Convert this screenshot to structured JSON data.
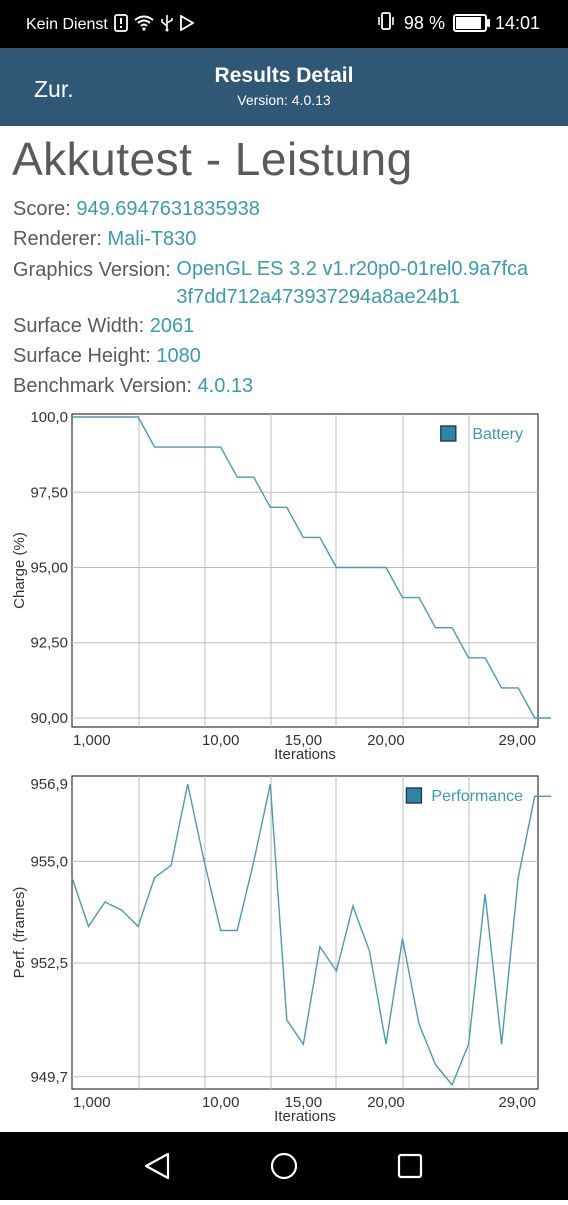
{
  "status_bar": {
    "carrier": "Kein Dienst",
    "battery_percent": "98 %",
    "battery_level": 0.98,
    "time": "14:01",
    "icons": [
      "sim-alert-icon",
      "wifi-icon",
      "usb-icon",
      "play-store-icon",
      "vibrate-icon",
      "battery-icon"
    ]
  },
  "app_bar": {
    "back_label": "Zur.",
    "title": "Results Detail",
    "version": "Version: 4.0.13"
  },
  "heading": "Akkutest - Leistung",
  "info": {
    "score_label": "Score: ",
    "score": "949.6947631835938",
    "renderer_label": "Renderer: ",
    "renderer": "Mali-T830",
    "graphics_label": "Graphics Version: ",
    "graphics": "OpenGL ES 3.2 v1.r20p0-01rel0.9a7fca3f7dd712a473937294a8ae24b1",
    "width_label": "Surface Width: ",
    "width": "2061",
    "height_label": "Surface Height: ",
    "height": "1080",
    "bench_label": "Benchmark Version: ",
    "bench": "4.0.13"
  },
  "colors": {
    "accent": "#3a9bb0",
    "appbar": "#2e5876",
    "line": "#4a9ab5"
  },
  "chart_data": [
    {
      "type": "line",
      "ylabel": "Charge (%)",
      "xlabel": "Iterations",
      "series": [
        {
          "name": "Battery",
          "x": [
            1,
            5,
            6,
            7,
            9,
            10,
            11,
            12,
            13,
            14,
            15,
            16,
            17,
            18,
            19,
            20,
            21,
            22,
            23,
            24,
            25,
            26,
            27,
            28,
            29,
            30
          ],
          "y": [
            100,
            100,
            99,
            99,
            99,
            99,
            98,
            98,
            97,
            97,
            96,
            96,
            95,
            95,
            95,
            95,
            94,
            94,
            93,
            93,
            92,
            92,
            91,
            91,
            90,
            90
          ]
        }
      ],
      "x_ticks": [
        "1,000",
        "10,00",
        "15,00",
        "20,00",
        "29,00"
      ],
      "y_ticks": [
        "100,0",
        "97,50",
        "95,00",
        "92,50",
        "90,00"
      ],
      "xlim": [
        1,
        29.2
      ],
      "ylim": [
        89.7,
        100.1
      ],
      "grid": true,
      "legend": "top-right"
    },
    {
      "type": "line",
      "ylabel": "Perf. (frames)",
      "xlabel": "Iterations",
      "series": [
        {
          "name": "Performance",
          "x": [
            1,
            2,
            3,
            4,
            5,
            6,
            7,
            8,
            9,
            10,
            11,
            12,
            13,
            14,
            15,
            16,
            17,
            18,
            19,
            20,
            21,
            22,
            23,
            24,
            25,
            26,
            27,
            28,
            29,
            30
          ],
          "y": [
            954.6,
            953.4,
            954.0,
            953.8,
            953.4,
            954.6,
            954.9,
            956.9,
            955.0,
            953.3,
            953.3,
            955.0,
            956.9,
            951.1,
            950.5,
            952.9,
            952.3,
            953.9,
            952.8,
            950.5,
            953.1,
            951.0,
            950.0,
            949.5,
            950.5,
            954.2,
            950.5,
            954.6,
            956.6,
            956.6
          ]
        }
      ],
      "x_ticks": [
        "1,000",
        "10,00",
        "15,00",
        "20,00",
        "29,00"
      ],
      "y_ticks": [
        "956,9",
        "955,0",
        "952,5",
        "949,7"
      ],
      "xlim": [
        1,
        29.2
      ],
      "ylim": [
        949.4,
        957.1
      ],
      "grid": true,
      "legend": "top-right"
    }
  ],
  "nav": {
    "icons": [
      "back-nav-icon",
      "home-nav-icon",
      "recents-nav-icon"
    ]
  }
}
